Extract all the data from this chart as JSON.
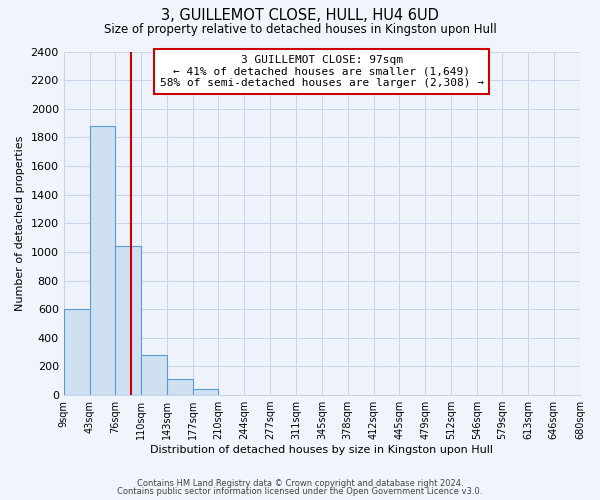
{
  "title": "3, GUILLEMOT CLOSE, HULL, HU4 6UD",
  "subtitle": "Size of property relative to detached houses in Kingston upon Hull",
  "xlabel": "Distribution of detached houses by size in Kingston upon Hull",
  "ylabel": "Number of detached properties",
  "bar_edges": [
    9,
    43,
    76,
    110,
    143,
    177,
    210,
    244,
    277,
    311,
    345,
    378,
    412,
    445,
    479,
    512,
    546,
    579,
    613,
    646,
    680
  ],
  "bar_heights": [
    600,
    1880,
    1040,
    280,
    115,
    40,
    0,
    0,
    0,
    0,
    0,
    0,
    0,
    0,
    0,
    0,
    0,
    0,
    0,
    0
  ],
  "property_line_x": 97,
  "bar_color": "#cfe0f0",
  "bar_edge_color": "#5b9bd5",
  "line_color": "#cc0000",
  "annotation_text": "3 GUILLEMOT CLOSE: 97sqm\n← 41% of detached houses are smaller (1,649)\n58% of semi-detached houses are larger (2,308) →",
  "annotation_box_color": "#ffffff",
  "annotation_box_edge": "#cc0000",
  "ylim": [
    0,
    2400
  ],
  "yticks": [
    0,
    200,
    400,
    600,
    800,
    1000,
    1200,
    1400,
    1600,
    1800,
    2000,
    2200,
    2400
  ],
  "footer_line1": "Contains HM Land Registry data © Crown copyright and database right 2024.",
  "footer_line2": "Contains public sector information licensed under the Open Government Licence v3.0.",
  "background_color": "#f0f5fc",
  "plot_bg_color": "#eef3fb",
  "grid_color": "#c8d4e8"
}
